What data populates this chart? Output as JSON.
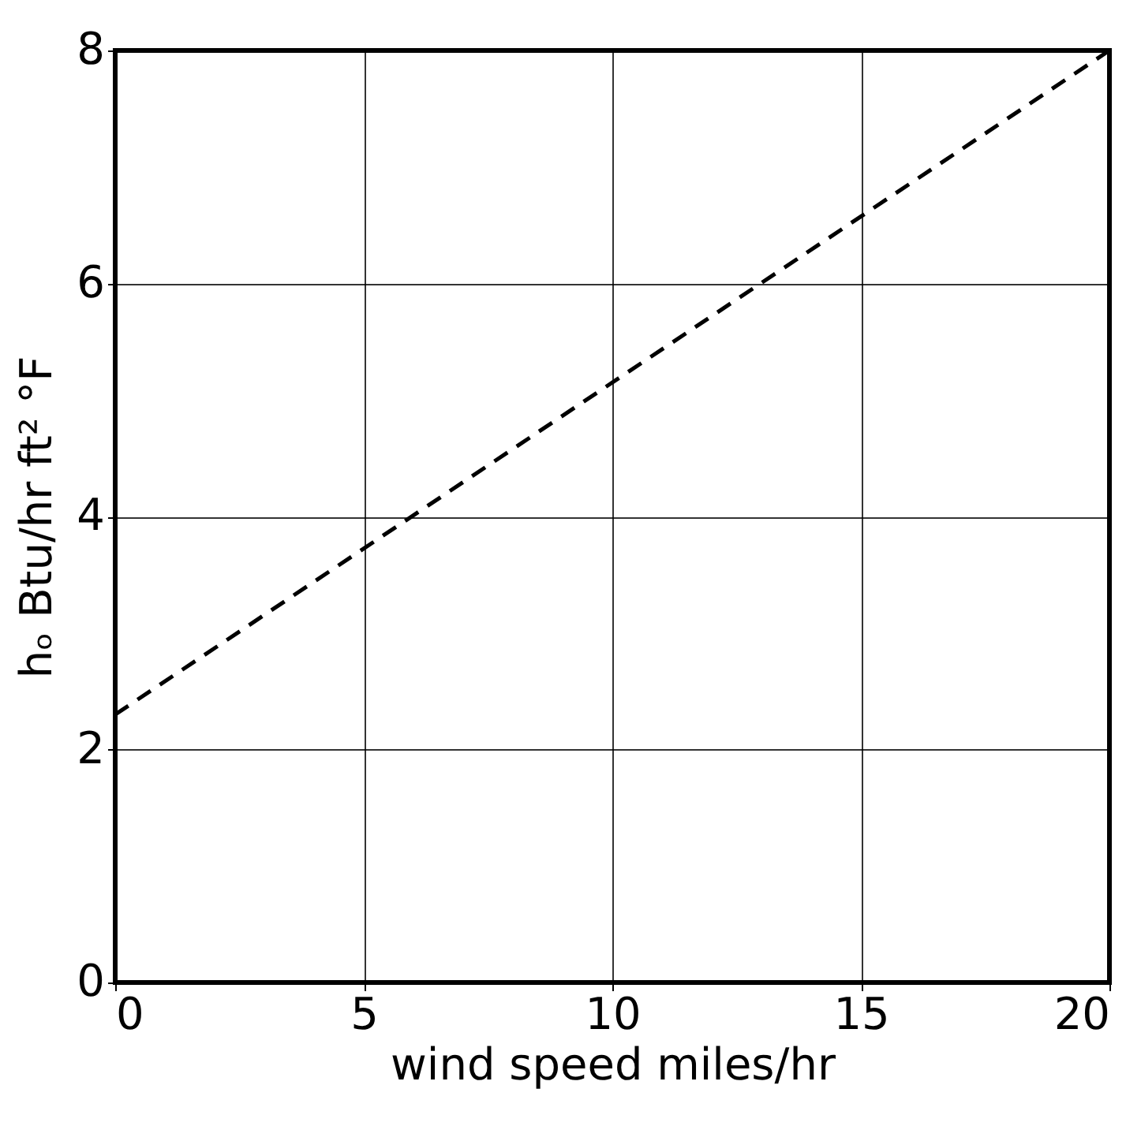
{
  "chart_data": {
    "type": "line",
    "xlabel": "wind speed   miles/hr",
    "ylabel": "hₒ  Btu/hr ft² °F",
    "x": [
      0,
      20
    ],
    "series": [
      {
        "color": "#000000",
        "values": [
          2.3,
          8
        ],
        "line_style": "dashed"
      }
    ],
    "xlim": [
      0,
      20
    ],
    "xticks": [
      0,
      5,
      10,
      15,
      20
    ],
    "ylim": [
      0,
      8
    ],
    "yticks": [
      0,
      2,
      4,
      6,
      8
    ],
    "grid": true,
    "marker": "none"
  }
}
